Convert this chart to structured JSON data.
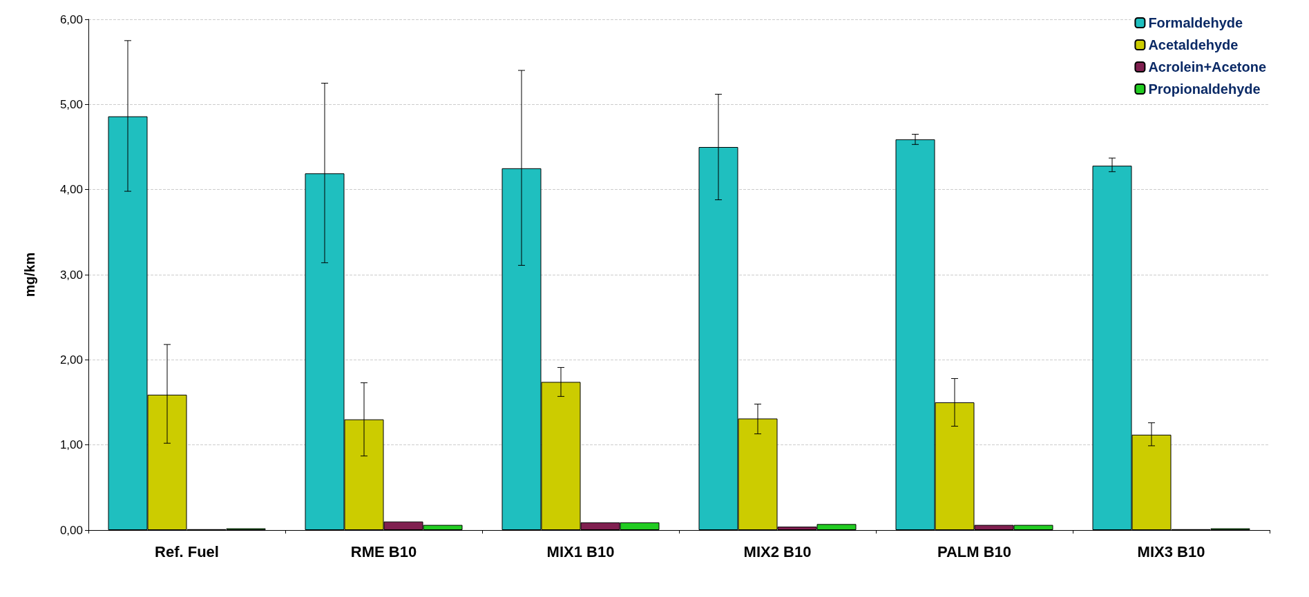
{
  "chart_data": {
    "type": "bar",
    "ylabel": "mg/km",
    "categories": [
      "Ref. Fuel",
      "RME B10",
      "MIX1 B10",
      "MIX2 B10",
      "PALM B10",
      "MIX3 B10"
    ],
    "series": [
      {
        "name": "Formaldehyde",
        "color": "#1fbfbf",
        "values": [
          4.86,
          4.19,
          4.25,
          4.5,
          4.59,
          4.28
        ],
        "errors": [
          [
            3.98,
            5.75
          ],
          [
            3.14,
            5.25
          ],
          [
            3.11,
            5.4
          ],
          [
            3.88,
            5.12
          ],
          [
            4.53,
            4.65
          ],
          [
            4.21,
            4.37
          ]
        ]
      },
      {
        "name": "Acetaldehyde",
        "color": "#cccc00",
        "values": [
          1.59,
          1.3,
          1.74,
          1.31,
          1.5,
          1.12
        ],
        "errors": [
          [
            1.02,
            2.18
          ],
          [
            0.87,
            1.73
          ],
          [
            1.57,
            1.91
          ],
          [
            1.13,
            1.48
          ],
          [
            1.22,
            1.78
          ],
          [
            0.99,
            1.26
          ]
        ]
      },
      {
        "name": "Acrolein+Acetone",
        "color": "#802050",
        "values": [
          0.01,
          0.1,
          0.09,
          0.04,
          0.06,
          0.01
        ]
      },
      {
        "name": "Propionaldehyde",
        "color": "#22cc22",
        "values": [
          0.02,
          0.06,
          0.09,
          0.07,
          0.06,
          0.02
        ]
      }
    ],
    "ylim": [
      0,
      6
    ],
    "yticks": [
      {
        "value": 0,
        "label": "0,00"
      },
      {
        "value": 1,
        "label": "1,00"
      },
      {
        "value": 2,
        "label": "2,00"
      },
      {
        "value": 3,
        "label": "3,00"
      },
      {
        "value": 4,
        "label": "4,00"
      },
      {
        "value": 5,
        "label": "5,00"
      },
      {
        "value": 6,
        "label": "6,00"
      }
    ],
    "grid": "y",
    "legend": "top right"
  }
}
